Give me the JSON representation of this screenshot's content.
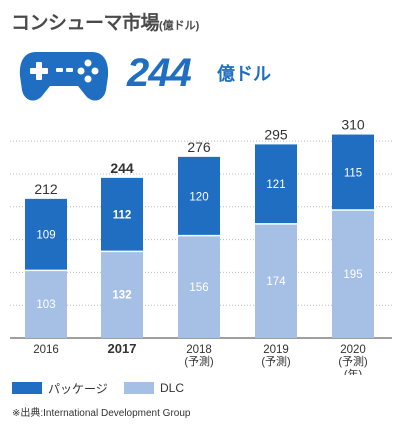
{
  "header": {
    "title": "コンシューマ市場",
    "title_unit": "(億ドル)"
  },
  "hero": {
    "icon": "gamepad-icon",
    "value": "244",
    "unit": "億ドル"
  },
  "colors": {
    "package": "#1f6ec1",
    "dlc": "#a6bfe4",
    "hero": "#1f6ec1"
  },
  "chart_data": {
    "type": "bar",
    "stacked": true,
    "categories": [
      "2016",
      "2017",
      "2018",
      "2019",
      "2020"
    ],
    "category_sublabels": [
      "",
      "",
      "(予測)",
      "(予測)",
      "(予測)"
    ],
    "axis_unit_label": "(年)",
    "highlight_category": "2017",
    "series": [
      {
        "name": "DLC",
        "values": [
          103,
          132,
          156,
          174,
          195
        ]
      },
      {
        "name": "パッケージ",
        "values": [
          109,
          112,
          120,
          121,
          115
        ]
      }
    ],
    "totals": [
      212,
      244,
      276,
      295,
      310
    ],
    "ylim": [
      0,
      320
    ],
    "grid": true,
    "legend_position": "bottom-left"
  },
  "legend": {
    "package_label": "パッケージ",
    "dlc_label": "DLC"
  },
  "source": "※出典:International Development Group"
}
